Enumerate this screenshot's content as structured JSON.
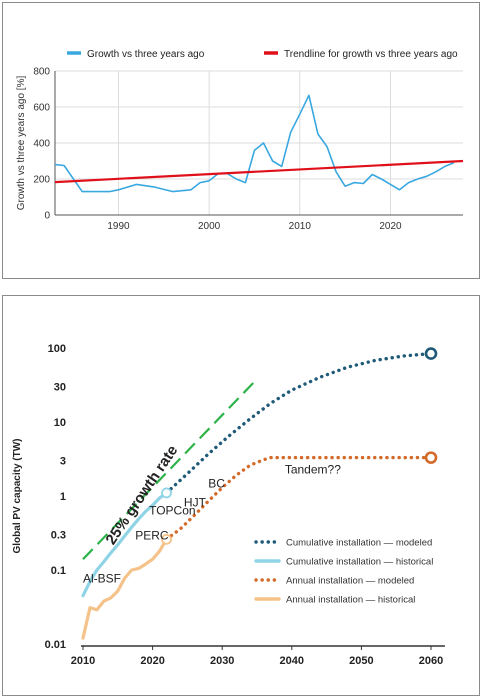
{
  "chart_data": [
    {
      "type": "line",
      "ylabel": "Growth vs three years ago [%]",
      "xlim": [
        1983,
        2028
      ],
      "ylim": [
        0,
        800
      ],
      "x_ticks": [
        1990,
        2000,
        2010,
        2020
      ],
      "y_ticks": [
        0,
        200,
        400,
        600,
        800
      ],
      "grid": true,
      "legend_position": "top",
      "series": [
        {
          "name": "Growth vs three years ago",
          "color": "#3aa8e0",
          "x": [
            1983,
            1984,
            1986,
            1987,
            1988,
            1989,
            1990,
            1992,
            1994,
            1996,
            1997,
            1998,
            1999,
            2000,
            2001,
            2002,
            2003,
            2004,
            2005,
            2006,
            2007,
            2008,
            2009,
            2010,
            2011,
            2012,
            2013,
            2014,
            2015,
            2016,
            2017,
            2018,
            2019,
            2020,
            2021,
            2022,
            2023,
            2024,
            2025,
            2026,
            2027
          ],
          "values": [
            280,
            275,
            130,
            130,
            130,
            130,
            140,
            170,
            155,
            130,
            135,
            140,
            180,
            190,
            230,
            230,
            200,
            180,
            360,
            400,
            300,
            270,
            460,
            560,
            665,
            450,
            380,
            240,
            160,
            180,
            175,
            225,
            200,
            170,
            140,
            180,
            200,
            215,
            240,
            270,
            290
          ]
        },
        {
          "name": "Trendline for growth vs three years ago",
          "color": "#e0101a",
          "x": [
            1983,
            2028
          ],
          "values": [
            183,
            300
          ]
        }
      ]
    },
    {
      "type": "line",
      "ylabel": "Global PV capacity (TW)",
      "yscale": "log",
      "xlim": [
        2010,
        2062
      ],
      "ylim": [
        0.01,
        150
      ],
      "x_ticks": [
        2010,
        2020,
        2030,
        2040,
        2050,
        2060
      ],
      "y_ticks": [
        "100",
        "30",
        "10",
        "3",
        "1",
        "0.3",
        "0.1",
        "0.01"
      ],
      "grid": false,
      "legend_position": "bottom-right",
      "series": [
        {
          "name": "Cumulative installation — modeled",
          "color": "#1f5a78",
          "style": "dotted",
          "x": [
            2022,
            2025,
            2028,
            2031,
            2034,
            2037,
            2040,
            2044,
            2048,
            2052,
            2056,
            2060
          ],
          "values": [
            1.1,
            2.0,
            3.7,
            6.5,
            11,
            18,
            27,
            40,
            55,
            68,
            78,
            84
          ]
        },
        {
          "name": "Cumulative installation — historical",
          "color": "#8fd3e6",
          "style": "solid",
          "x": [
            2010,
            2011,
            2012,
            2013,
            2014,
            2015,
            2016,
            2017,
            2018,
            2019,
            2020,
            2021,
            2022
          ],
          "values": [
            0.045,
            0.07,
            0.1,
            0.13,
            0.17,
            0.22,
            0.29,
            0.38,
            0.49,
            0.62,
            0.75,
            0.94,
            1.1
          ]
        },
        {
          "name": "Annual installation — modeled",
          "color": "#d46a2a",
          "style": "dotted",
          "x": [
            2022,
            2024,
            2026,
            2028,
            2030,
            2032,
            2034,
            2036,
            2037,
            2040,
            2045,
            2050,
            2055,
            2060
          ],
          "values": [
            0.26,
            0.36,
            0.55,
            0.85,
            1.3,
            1.9,
            2.6,
            3.1,
            3.3,
            3.3,
            3.3,
            3.3,
            3.3,
            3.3
          ]
        },
        {
          "name": "Annual installation — historical",
          "color": "#f5c28a",
          "style": "solid",
          "x": [
            2010,
            2011,
            2012,
            2013,
            2014,
            2015,
            2016,
            2017,
            2018,
            2019,
            2020,
            2021,
            2022
          ],
          "values": [
            0.012,
            0.031,
            0.029,
            0.038,
            0.042,
            0.052,
            0.078,
            0.1,
            0.105,
            0.12,
            0.14,
            0.18,
            0.26
          ]
        },
        {
          "name": "25% growth rate",
          "color": "#2db34a",
          "style": "dashed",
          "x": [
            2010,
            2034.5
          ],
          "values": [
            0.14,
            34
          ]
        }
      ],
      "markers": [
        {
          "series": "Cumulative installation — modeled",
          "x": 2060,
          "value": 84,
          "color": "#1f5a78"
        },
        {
          "series": "Cumulative installation — historical",
          "x": 2022,
          "value": 1.1,
          "color": "#8fd3e6"
        },
        {
          "series": "Annual installation — modeled",
          "x": 2060,
          "value": 3.3,
          "color": "#d46a2a"
        },
        {
          "series": "Annual installation — historical",
          "x": 2022,
          "value": 0.26,
          "color": "#f5c28a"
        }
      ],
      "annotations": [
        {
          "text": "Al-BSF",
          "x": 2010,
          "value": 0.068
        },
        {
          "text": "PERC",
          "x": 2017.5,
          "value": 0.26
        },
        {
          "text": "TOPCon",
          "x": 2019.5,
          "value": 0.56
        },
        {
          "text": "HJT",
          "x": 2024.5,
          "value": 0.72
        },
        {
          "text": "BC",
          "x": 2028,
          "value": 1.3
        },
        {
          "text": "Tandem??",
          "x": 2039,
          "value": 2.0
        },
        {
          "text": "25% growth rate",
          "x": 2019,
          "value": 0.95,
          "rotation": -56
        }
      ]
    }
  ]
}
